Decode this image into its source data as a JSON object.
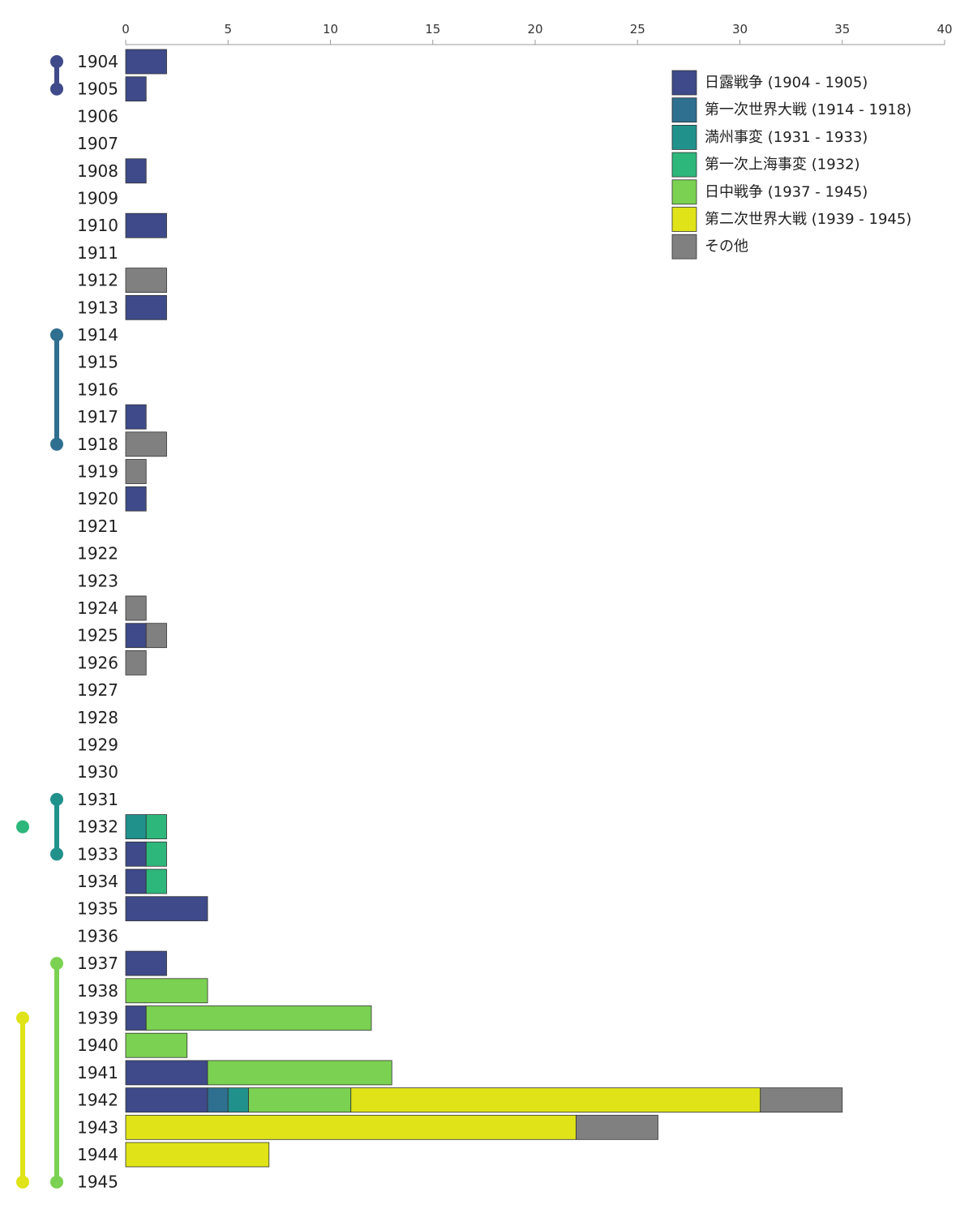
{
  "chart_data": {
    "type": "bar",
    "orientation": "horizontal",
    "stacked": true,
    "x_axis": {
      "position": "top",
      "range": [
        0,
        40
      ],
      "ticks": [
        0,
        5,
        10,
        15,
        20,
        25,
        30,
        35,
        40
      ]
    },
    "legend_position": "top-right",
    "categories": [
      "1904",
      "1905",
      "1906",
      "1907",
      "1908",
      "1909",
      "1910",
      "1911",
      "1912",
      "1913",
      "1914",
      "1915",
      "1916",
      "1917",
      "1918",
      "1919",
      "1920",
      "1921",
      "1922",
      "1923",
      "1924",
      "1925",
      "1926",
      "1927",
      "1928",
      "1929",
      "1930",
      "1931",
      "1932",
      "1933",
      "1934",
      "1935",
      "1936",
      "1937",
      "1938",
      "1939",
      "1940",
      "1941",
      "1942",
      "1943",
      "1944",
      "1945"
    ],
    "series": [
      {
        "name": "日露戦争 (1904 - 1905)",
        "color": "#3e4a89",
        "values": [
          2,
          1,
          0,
          0,
          1,
          0,
          2,
          0,
          0,
          2,
          0,
          0,
          0,
          1,
          0,
          0,
          1,
          0,
          0,
          0,
          0,
          1,
          0,
          0,
          0,
          0,
          0,
          0,
          0,
          1,
          1,
          4,
          0,
          2,
          0,
          1,
          0,
          4,
          4,
          0,
          0,
          0
        ]
      },
      {
        "name": "第一次世界大戦 (1914 - 1918)",
        "color": "#2f6f8f",
        "values": [
          0,
          0,
          0,
          0,
          0,
          0,
          0,
          0,
          0,
          0,
          0,
          0,
          0,
          0,
          0,
          0,
          0,
          0,
          0,
          0,
          0,
          0,
          0,
          0,
          0,
          0,
          0,
          0,
          0,
          0,
          0,
          0,
          0,
          0,
          0,
          0,
          0,
          0,
          1,
          0,
          0,
          0
        ]
      },
      {
        "name": "満州事変 (1931 - 1933)",
        "color": "#21918c",
        "values": [
          0,
          0,
          0,
          0,
          0,
          0,
          0,
          0,
          0,
          0,
          0,
          0,
          0,
          0,
          0,
          0,
          0,
          0,
          0,
          0,
          0,
          0,
          0,
          0,
          0,
          0,
          0,
          0,
          1,
          0,
          0,
          0,
          0,
          0,
          0,
          0,
          0,
          0,
          1,
          0,
          0,
          0
        ]
      },
      {
        "name": "第一次上海事変 (1932)",
        "color": "#2db77a",
        "values": [
          0,
          0,
          0,
          0,
          0,
          0,
          0,
          0,
          0,
          0,
          0,
          0,
          0,
          0,
          0,
          0,
          0,
          0,
          0,
          0,
          0,
          0,
          0,
          0,
          0,
          0,
          0,
          0,
          1,
          1,
          1,
          0,
          0,
          0,
          0,
          0,
          0,
          0,
          0,
          0,
          0,
          0
        ]
      },
      {
        "name": "日中戦争 (1937 - 1945)",
        "color": "#7bd151",
        "values": [
          0,
          0,
          0,
          0,
          0,
          0,
          0,
          0,
          0,
          0,
          0,
          0,
          0,
          0,
          0,
          0,
          0,
          0,
          0,
          0,
          0,
          0,
          0,
          0,
          0,
          0,
          0,
          0,
          0,
          0,
          0,
          0,
          0,
          0,
          4,
          11,
          3,
          9,
          5,
          0,
          0,
          0
        ]
      },
      {
        "name": "第二次世界大戦 (1939 - 1945)",
        "color": "#dfe318",
        "values": [
          0,
          0,
          0,
          0,
          0,
          0,
          0,
          0,
          0,
          0,
          0,
          0,
          0,
          0,
          0,
          0,
          0,
          0,
          0,
          0,
          0,
          0,
          0,
          0,
          0,
          0,
          0,
          0,
          0,
          0,
          0,
          0,
          0,
          0,
          0,
          0,
          0,
          0,
          20,
          22,
          7,
          0
        ]
      },
      {
        "name": "その他",
        "color": "#808080",
        "values": [
          0,
          0,
          0,
          0,
          0,
          0,
          0,
          0,
          2,
          0,
          0,
          0,
          0,
          0,
          2,
          1,
          0,
          0,
          0,
          0,
          1,
          1,
          1,
          0,
          0,
          0,
          0,
          0,
          0,
          0,
          0,
          0,
          0,
          0,
          0,
          0,
          0,
          0,
          4,
          4,
          0,
          0
        ]
      }
    ],
    "period_markers": [
      {
        "series": "日露戦争 (1904 - 1905)",
        "start": "1904",
        "end": "1905",
        "lane": 1
      },
      {
        "series": "第一次世界大戦 (1914 - 1918)",
        "start": "1914",
        "end": "1918",
        "lane": 1
      },
      {
        "series": "満州事変 (1931 - 1933)",
        "start": "1931",
        "end": "1933",
        "lane": 1
      },
      {
        "series": "第一次上海事変 (1932)",
        "start": "1932",
        "end": "1932",
        "lane": 0
      },
      {
        "series": "日中戦争 (1937 - 1945)",
        "start": "1937",
        "end": "1945",
        "lane": 1
      },
      {
        "series": "第二次世界大戦 (1939 - 1945)",
        "start": "1939",
        "end": "1945",
        "lane": 0
      }
    ]
  }
}
